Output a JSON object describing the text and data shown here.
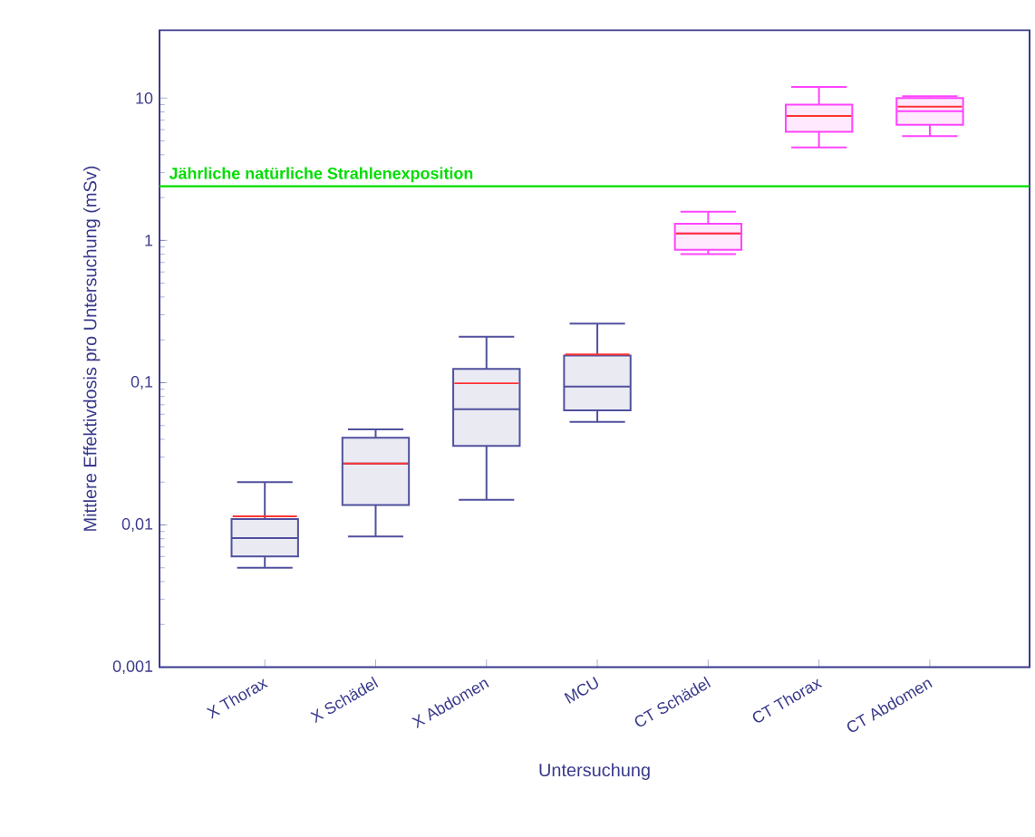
{
  "chart_data": {
    "type": "box",
    "xlabel": "Untersuchung",
    "ylabel": "Mittlere Effektivdosis pro Untersuchung (mSv)",
    "categories": [
      "X Thorax",
      "X Schädel",
      "X Abdomen",
      "MCU",
      "CT Schädel",
      "CT Thorax",
      "CT Abdomen"
    ],
    "log": true,
    "ylim": [
      0.001,
      30
    ],
    "yticks": [
      {
        "value": 0.001,
        "label": "0,001"
      },
      {
        "value": 0.01,
        "label": "0,01"
      },
      {
        "value": 0.1,
        "label": "0,1"
      },
      1,
      10
    ],
    "series": [
      {
        "color": "#50509e",
        "boxes": [
          {
            "low": 0.005,
            "q1": 0.006,
            "median": 0.0081,
            "q3": 0.011,
            "high": 0.02,
            "mean": 0.0115
          },
          {
            "low": 0.0083,
            "q1": 0.0138,
            "median": 0.027,
            "q3": 0.041,
            "high": 0.047,
            "mean": 0.027
          },
          {
            "low": 0.015,
            "q1": 0.036,
            "median": 0.065,
            "q3": 0.125,
            "high": 0.21,
            "mean": 0.099
          },
          {
            "low": 0.053,
            "q1": 0.064,
            "median": 0.094,
            "q3": 0.155,
            "high": 0.26,
            "mean": 0.158
          },
          null,
          null,
          null
        ]
      },
      {
        "color": "#ff44ff",
        "boxes": [
          null,
          null,
          null,
          null,
          {
            "low": 0.8,
            "q1": 0.86,
            "median": 1.12,
            "q3": 1.31,
            "high": 1.59,
            "mean": 1.12
          },
          {
            "low": 4.5,
            "q1": 5.8,
            "median": 7.5,
            "q3": 9,
            "high": 12,
            "mean": 7.5
          },
          {
            "low": 5.4,
            "q1": 6.5,
            "median": 8.1,
            "q3": 10,
            "high": 10.3,
            "mean": 8.7
          }
        ]
      }
    ],
    "ref_lines": [
      {
        "axis": "y",
        "value": 2.4,
        "label": "Jährliche natürliche Strahlenexposition",
        "color": "#00dd00"
      }
    ]
  }
}
